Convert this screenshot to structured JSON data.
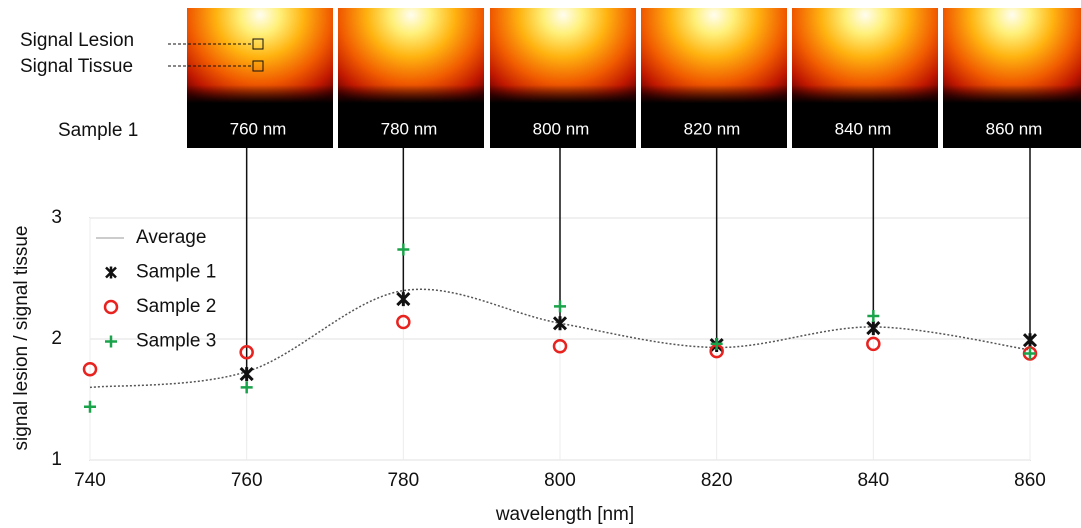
{
  "figure": {
    "signal_lesion": "Signal Lesion",
    "signal_tissue": "Signal Tissue",
    "sample_label": "Sample 1",
    "panels": [
      "760 nm",
      "780 nm",
      "800 nm",
      "820 nm",
      "840 nm",
      "860 nm"
    ]
  },
  "chart_data": {
    "type": "scatter",
    "x_label": "wavelength [nm]",
    "y_label": "signal lesion / signal tissue",
    "x": [
      740,
      760,
      780,
      800,
      820,
      840,
      860
    ],
    "xlim": [
      740,
      860
    ],
    "xticks": [
      740,
      760,
      780,
      800,
      820,
      840,
      860
    ],
    "ylim": [
      1,
      3
    ],
    "yticks": [
      1,
      2,
      3
    ],
    "grid": true,
    "legend": "upper left",
    "series": [
      {
        "name": "Average",
        "color": "#555555",
        "marker": "line",
        "values": [
          1.6,
          1.73,
          2.4,
          2.13,
          1.93,
          2.1,
          1.91
        ]
      },
      {
        "name": "Sample 1",
        "color": "#111111",
        "marker": "x",
        "values": [
          null,
          1.71,
          2.33,
          2.13,
          1.95,
          2.09,
          1.99
        ]
      },
      {
        "name": "Sample 2",
        "color": "#e8221e",
        "marker": "o",
        "values": [
          1.75,
          1.89,
          2.14,
          1.94,
          1.9,
          1.96,
          1.88
        ]
      },
      {
        "name": "Sample 3",
        "color": "#1aa34a",
        "marker": "+",
        "values": [
          1.44,
          1.6,
          2.74,
          2.27,
          1.96,
          2.19,
          1.88
        ]
      }
    ]
  }
}
